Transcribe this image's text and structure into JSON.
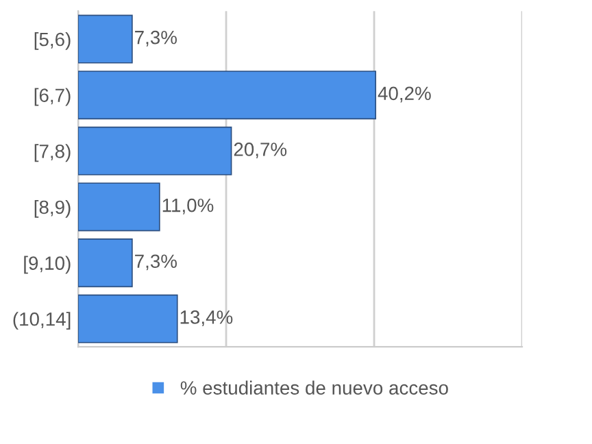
{
  "chart_data": {
    "type": "bar",
    "orientation": "horizontal",
    "categories": [
      "[5,6)",
      "[6,7)",
      "[7,8)",
      "[8,9)",
      "[9,10)",
      "(10,14]"
    ],
    "series": [
      {
        "name": "% estudiantes de nuevo acceso",
        "color": "#4a90e8",
        "values": [
          7.3,
          40.2,
          20.7,
          11.0,
          7.3,
          13.4
        ],
        "value_labels": [
          "7,3%",
          "40,2%",
          "20,7%",
          "11,0%",
          "7,3%",
          "13,4%"
        ]
      }
    ],
    "xlim": [
      0,
      60
    ],
    "xticks": [
      {
        "value": 0,
        "label": null
      },
      {
        "value": 20,
        "label": null
      },
      {
        "value": 40,
        "label": null
      },
      {
        "value": 60,
        "label": null
      }
    ],
    "tick_labels": "y",
    "grid": "x",
    "legend": "bottom"
  }
}
